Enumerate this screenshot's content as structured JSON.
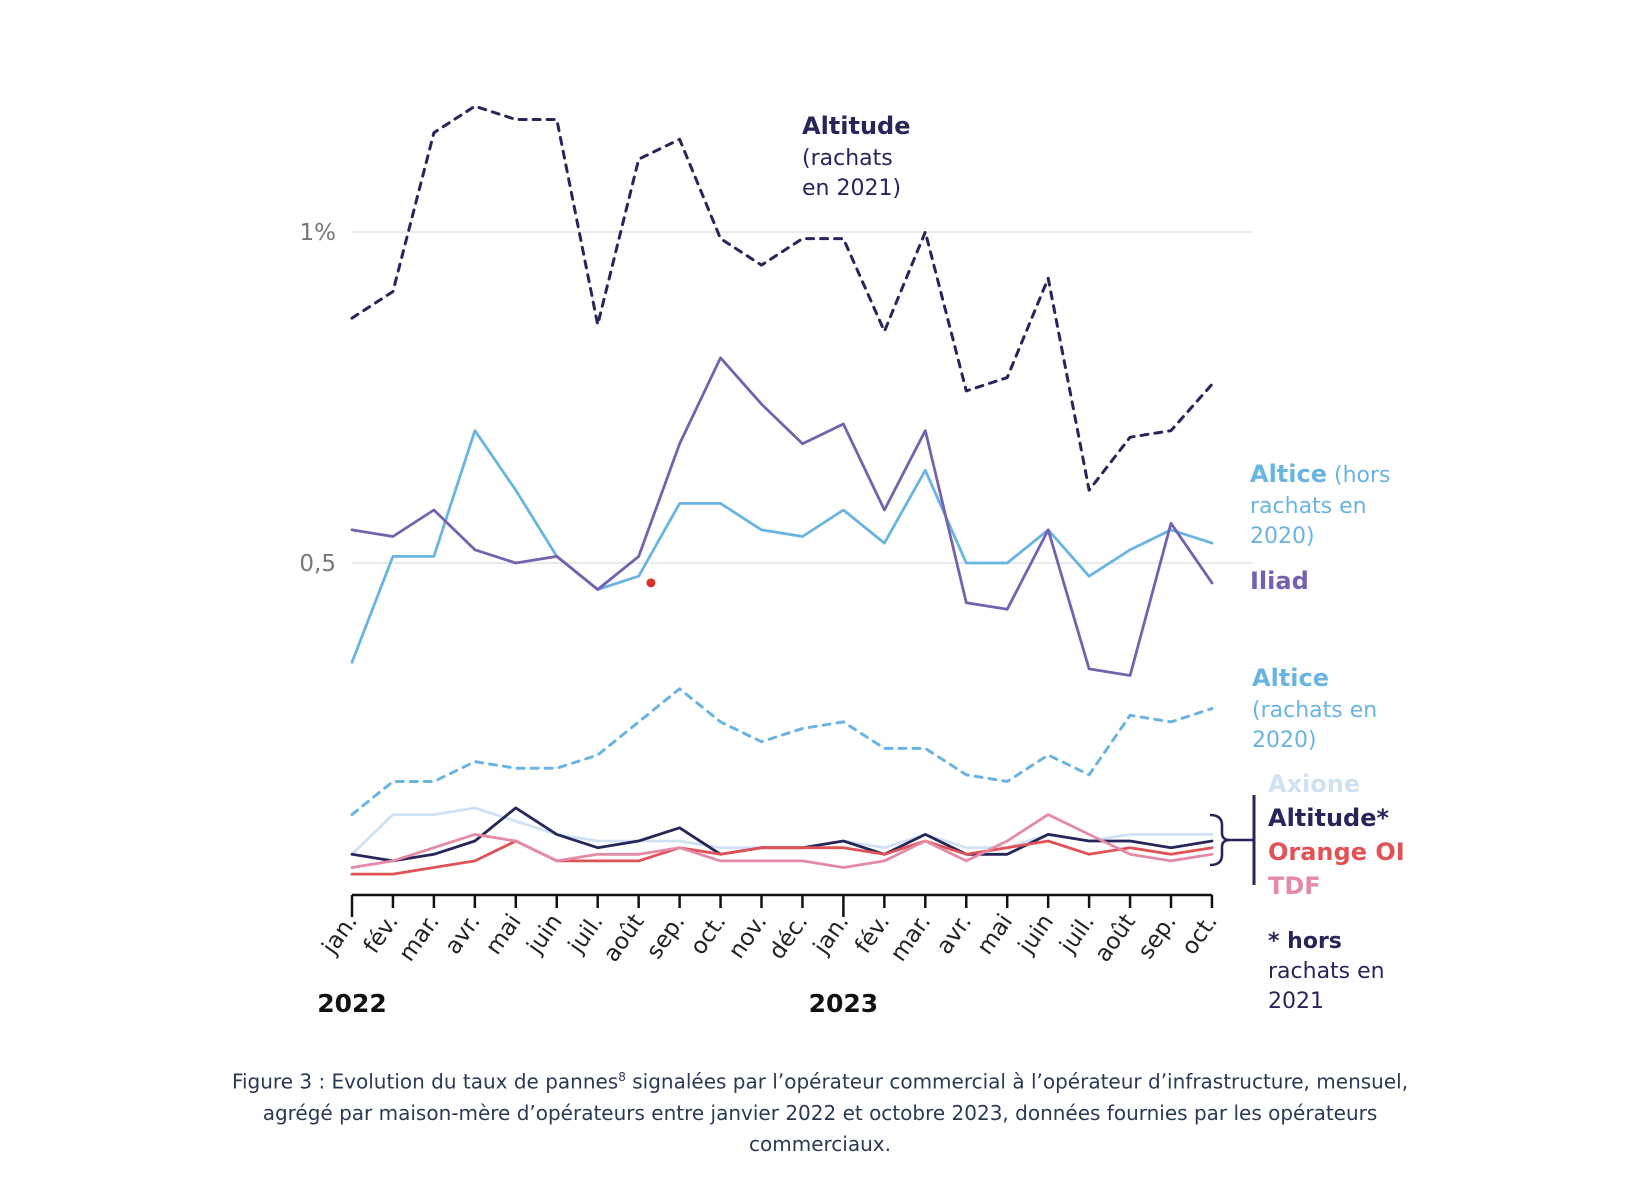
{
  "caption": {
    "before": "Figure 3 : Evolution du taux de pannes",
    "sup": "8",
    "after": " signalées par l’opérateur commercial à l’opérateur d’infrastructure, mensuel, agrégé par maison-mère d’opérateurs entre janvier 2022 et octobre 2023, données fournies par les opérateurs commerciaux."
  },
  "labels": {
    "altitude_title": "Altitude",
    "altitude_sub1": "(rachats",
    "altitude_sub2": "en 2021)",
    "altice_hors_title": "Altice",
    "altice_hors_sub0": " (hors",
    "altice_hors_sub1": "rachats en",
    "altice_hors_sub2": "2020)",
    "iliad": "Iliad",
    "altice_rach_title": "Altice",
    "altice_rach_sub1": "(rachats en",
    "altice_rach_sub2": "2020)",
    "axione": "Axione",
    "altitude_star": "Altitude*",
    "orange": "Orange OI",
    "tdf": "TDF",
    "footnote1": "* hors",
    "footnote2": "rachats en",
    "footnote3": "2021"
  },
  "chart_data": {
    "type": "line",
    "x": [
      "jan.",
      "fév.",
      "mar.",
      "avr.",
      "mai",
      "juin",
      "juil.",
      "août",
      "sep.",
      "oct.",
      "nov.",
      "déc.",
      "jan.",
      "fév.",
      "mar.",
      "avr.",
      "mai",
      "juin",
      "juil.",
      "août",
      "sep.",
      "oct."
    ],
    "year_labels": [
      {
        "label": "2022",
        "index": 0
      },
      {
        "label": "2023",
        "index": 12
      }
    ],
    "y_ticks": [
      {
        "value": 0.5,
        "label": "0,5"
      },
      {
        "value": 1.0,
        "label": "1%"
      }
    ],
    "ylim": [
      0,
      1.18
    ],
    "grid": true,
    "colors": {
      "altitude": "#27265a",
      "altice": "#6ab4e2",
      "iliad": "#7562ae",
      "axione": "#cfe2f3",
      "orange": "#e05256",
      "tdf": "#e58aa6",
      "marker": "#d9322e"
    },
    "series": [
      {
        "name": "Altitude (rachats en 2021)",
        "style": "dashed",
        "color": "#27265a",
        "values": [
          0.87,
          0.91,
          1.15,
          1.19,
          1.17,
          1.17,
          0.86,
          1.11,
          1.14,
          0.99,
          0.95,
          0.99,
          0.99,
          0.85,
          1.0,
          0.76,
          0.78,
          0.93,
          0.61,
          0.69,
          0.7,
          0.77
        ]
      },
      {
        "name": "Altice (hors rachats en 2020)",
        "style": "solid",
        "color": "#6ab4e2",
        "values": [
          0.35,
          0.51,
          0.51,
          0.7,
          0.61,
          0.51,
          0.46,
          0.48,
          0.59,
          0.59,
          0.55,
          0.54,
          0.58,
          0.53,
          0.64,
          0.5,
          0.5,
          0.55,
          0.48,
          0.52,
          0.55,
          0.53
        ]
      },
      {
        "name": "Iliad",
        "style": "solid",
        "color": "#7562ae",
        "values": [
          0.55,
          0.54,
          0.58,
          0.52,
          0.5,
          0.51,
          0.46,
          0.51,
          0.68,
          0.81,
          0.74,
          0.68,
          0.71,
          0.58,
          0.7,
          0.44,
          0.43,
          0.55,
          0.34,
          0.33,
          0.56,
          0.47
        ]
      },
      {
        "name": "Altice (rachats en 2020)",
        "style": "dashed",
        "color": "#6ab4e2",
        "values": [
          0.12,
          0.17,
          0.17,
          0.2,
          0.19,
          0.19,
          0.21,
          0.26,
          0.31,
          0.26,
          0.23,
          0.25,
          0.26,
          0.22,
          0.22,
          0.18,
          0.17,
          0.21,
          0.18,
          0.27,
          0.26,
          0.28
        ]
      },
      {
        "name": "Axione",
        "style": "solid",
        "color": "#cfe2f3",
        "values": [
          0.06,
          0.12,
          0.12,
          0.13,
          0.11,
          0.09,
          0.08,
          0.08,
          0.08,
          0.07,
          0.07,
          0.07,
          0.08,
          0.07,
          0.09,
          0.07,
          0.07,
          0.09,
          0.08,
          0.09,
          0.09,
          0.09
        ]
      },
      {
        "name": "Altitude*",
        "style": "solid",
        "color": "#27265a",
        "values": [
          0.06,
          0.05,
          0.06,
          0.08,
          0.13,
          0.09,
          0.07,
          0.08,
          0.1,
          0.06,
          0.07,
          0.07,
          0.08,
          0.06,
          0.09,
          0.06,
          0.06,
          0.09,
          0.08,
          0.08,
          0.07,
          0.08
        ]
      },
      {
        "name": "Orange OI",
        "style": "solid",
        "color": "#e05256",
        "values": [
          0.03,
          0.03,
          0.04,
          0.05,
          0.08,
          0.05,
          0.05,
          0.05,
          0.07,
          0.06,
          0.07,
          0.07,
          0.07,
          0.06,
          0.08,
          0.06,
          0.07,
          0.08,
          0.06,
          0.07,
          0.06,
          0.07
        ]
      },
      {
        "name": "TDF",
        "style": "solid",
        "color": "#e58aa6",
        "values": [
          0.04,
          0.05,
          0.07,
          0.09,
          0.08,
          0.05,
          0.06,
          0.06,
          0.07,
          0.05,
          0.05,
          0.05,
          0.04,
          0.05,
          0.08,
          0.05,
          0.08,
          0.12,
          0.09,
          0.06,
          0.05,
          0.06
        ]
      }
    ],
    "marker_point": {
      "index": 7.3,
      "value": 0.47
    }
  }
}
